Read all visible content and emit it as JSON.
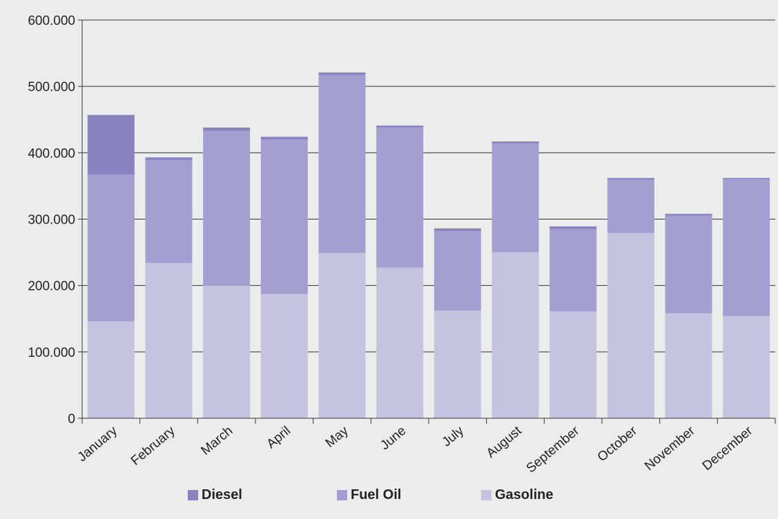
{
  "chart_data": {
    "type": "bar",
    "stacked": true,
    "categories": [
      "January",
      "February",
      "March",
      "April",
      "May",
      "June",
      "July",
      "August",
      "September",
      "October",
      "November",
      "December"
    ],
    "series": [
      {
        "name": "Gasoline",
        "color": "#c6c3e1",
        "values": [
          146000,
          234000,
          200000,
          187000,
          249000,
          227000,
          162000,
          250000,
          161000,
          279000,
          158000,
          154000
        ]
      },
      {
        "name": "Fuel Oil",
        "color": "#a59fd1",
        "values": [
          221000,
          155000,
          233000,
          233000,
          268000,
          211000,
          120000,
          164000,
          124000,
          80000,
          147000,
          206000
        ]
      },
      {
        "name": "Diesel",
        "color": "#8a83c0",
        "values": [
          90000,
          4000,
          5000,
          4000,
          4000,
          3000,
          4000,
          3000,
          4000,
          3000,
          3000,
          2000
        ]
      }
    ],
    "ylim": [
      0,
      600000
    ],
    "yticks": [
      0,
      100000,
      200000,
      300000,
      400000,
      500000,
      600000
    ],
    "ytick_labels": [
      "0",
      "100.000",
      "200.000",
      "300.000",
      "400.000",
      "500.000",
      "600.000"
    ],
    "grid": true,
    "legend_position": "bottom",
    "legend_order": [
      "Diesel",
      "Fuel Oil",
      "Gasoline"
    ],
    "background": "#ececec"
  },
  "legend": {
    "items": [
      {
        "label": "Diesel",
        "color": "#8a83c0"
      },
      {
        "label": "Fuel Oil",
        "color": "#a59fd1"
      },
      {
        "label": "Gasoline",
        "color": "#c6c3e1"
      }
    ]
  }
}
